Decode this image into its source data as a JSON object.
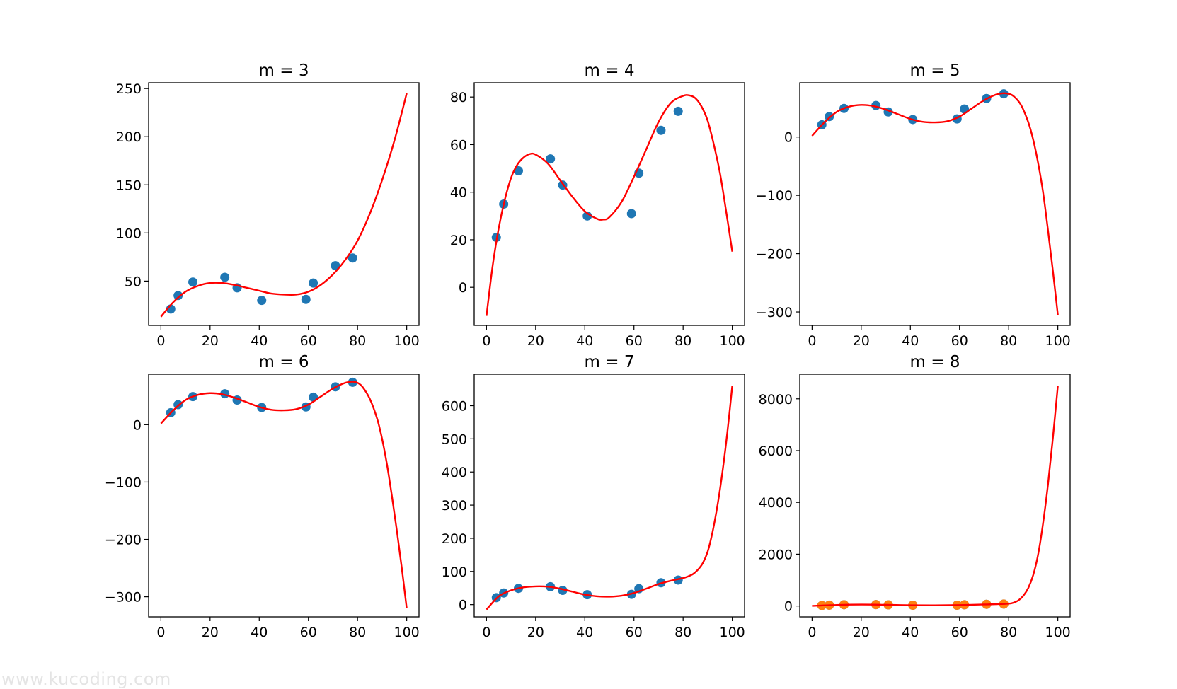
{
  "watermark": "www.kucoding.com",
  "style": {
    "point_color": "#1f77b4",
    "alt_point_color": "#ff7f0e",
    "curve_color": "#ff0000"
  },
  "chart_data": [
    {
      "type": "scatter",
      "title": "m = 3",
      "x": [
        4,
        7,
        13,
        26,
        31,
        41,
        59,
        62,
        71,
        78
      ],
      "y": [
        21,
        35,
        49,
        54,
        43,
        30,
        31,
        48,
        66,
        74
      ],
      "xlim": [
        -5,
        105
      ],
      "ylim": [
        4,
        256
      ],
      "xticks": [
        "0",
        "20",
        "40",
        "60",
        "80",
        "100"
      ],
      "xtick_values": [
        0,
        20,
        40,
        60,
        80,
        100
      ],
      "yticks": [
        "50",
        "100",
        "150",
        "200",
        "250"
      ],
      "ytick_values": [
        50,
        100,
        150,
        200,
        250
      ],
      "point_color": "#1f77b4",
      "fit_curve": {
        "x": [
          0,
          5,
          10,
          15,
          20,
          25,
          30,
          35,
          40,
          45,
          50,
          55,
          60,
          65,
          70,
          75,
          80,
          85,
          90,
          95,
          100
        ],
        "y": [
          13,
          28,
          39,
          45,
          48,
          48,
          46,
          43,
          40,
          37,
          36,
          36,
          39,
          46,
          57,
          72,
          92,
          120,
          155,
          196,
          245
        ]
      }
    },
    {
      "type": "scatter",
      "title": "m = 4",
      "x": [
        4,
        7,
        13,
        26,
        31,
        41,
        59,
        62,
        71,
        78
      ],
      "y": [
        21,
        35,
        49,
        54,
        43,
        30,
        31,
        48,
        66,
        74
      ],
      "xlim": [
        -5,
        105
      ],
      "ylim": [
        -16,
        86
      ],
      "xticks": [
        "0",
        "20",
        "40",
        "60",
        "80",
        "100"
      ],
      "xtick_values": [
        0,
        20,
        40,
        60,
        80,
        100
      ],
      "yticks": [
        "0",
        "20",
        "40",
        "60",
        "80"
      ],
      "ytick_values": [
        0,
        20,
        40,
        60,
        80
      ],
      "point_color": "#1f77b4",
      "fit_curve": {
        "x": [
          0,
          2.5,
          5,
          7.5,
          10,
          12.5,
          15,
          17.5,
          20,
          25,
          30,
          35,
          40,
          45,
          47.5,
          50,
          55,
          60,
          65,
          70,
          75,
          80,
          82.5,
          85,
          87.5,
          90,
          92.5,
          95,
          97.5,
          100
        ],
        "y": [
          -12,
          9,
          25,
          37,
          46,
          51.5,
          54.5,
          56,
          55.8,
          52,
          45,
          38,
          32,
          28.8,
          28.5,
          29.5,
          36,
          46.5,
          58,
          69.5,
          77.5,
          80.5,
          80.7,
          79.5,
          76,
          70,
          60,
          48,
          32,
          15
        ]
      }
    },
    {
      "type": "scatter",
      "title": "m = 5",
      "x": [
        4,
        7,
        13,
        26,
        31,
        41,
        59,
        62,
        71,
        78
      ],
      "y": [
        21,
        35,
        49,
        54,
        43,
        30,
        31,
        48,
        66,
        74
      ],
      "xlim": [
        -5,
        105
      ],
      "ylim": [
        -323,
        93
      ],
      "xticks": [
        "0",
        "20",
        "40",
        "60",
        "80",
        "100"
      ],
      "xtick_values": [
        0,
        20,
        40,
        60,
        80,
        100
      ],
      "yticks": [
        "0",
        "−100",
        "−200",
        "−300"
      ],
      "ytick_values": [
        0,
        -100,
        -200,
        -300
      ],
      "point_color": "#1f77b4",
      "fit_curve": {
        "x": [
          0,
          5,
          10,
          15,
          20,
          25,
          30,
          35,
          40,
          45,
          50,
          55,
          60,
          65,
          70,
          75,
          78,
          80,
          82,
          85,
          88,
          90,
          92,
          94,
          96,
          98,
          100
        ],
        "y": [
          2,
          25,
          43,
          52,
          55,
          53,
          47,
          39,
          31,
          26,
          25,
          27,
          35,
          49,
          63,
          73,
          75,
          74,
          70,
          55,
          25,
          -5,
          -45,
          -95,
          -160,
          -230,
          -305
        ]
      }
    },
    {
      "type": "scatter",
      "title": "m = 6",
      "x": [
        4,
        7,
        13,
        26,
        31,
        41,
        59,
        62,
        71,
        78
      ],
      "y": [
        21,
        35,
        49,
        54,
        43,
        30,
        31,
        48,
        66,
        74
      ],
      "xlim": [
        -5,
        105
      ],
      "ylim": [
        -335,
        88
      ],
      "xticks": [
        "0",
        "20",
        "40",
        "60",
        "80",
        "100"
      ],
      "xtick_values": [
        0,
        20,
        40,
        60,
        80,
        100
      ],
      "yticks": [
        "0",
        "−100",
        "−200",
        "−300"
      ],
      "ytick_values": [
        0,
        -100,
        -200,
        -300
      ],
      "point_color": "#1f77b4",
      "fit_curve": {
        "x": [
          0,
          5,
          10,
          15,
          20,
          25,
          30,
          35,
          40,
          45,
          50,
          55,
          60,
          65,
          70,
          75,
          78,
          80,
          82,
          85,
          88,
          90,
          92,
          94,
          96,
          98,
          100
        ],
        "y": [
          2,
          25,
          43,
          52,
          55,
          53,
          47,
          39,
          31,
          26,
          25,
          27,
          35,
          49,
          63,
          73,
          75,
          73,
          66,
          45,
          10,
          -25,
          -70,
          -125,
          -185,
          -250,
          -320
        ]
      }
    },
    {
      "type": "scatter",
      "title": "m = 7",
      "x": [
        4,
        7,
        13,
        26,
        31,
        41,
        59,
        62,
        71,
        78
      ],
      "y": [
        21,
        35,
        49,
        54,
        43,
        30,
        31,
        48,
        66,
        74
      ],
      "xlim": [
        -5,
        105
      ],
      "ylim": [
        -37,
        695
      ],
      "xticks": [
        "0",
        "20",
        "40",
        "60",
        "80",
        "100"
      ],
      "xtick_values": [
        0,
        20,
        40,
        60,
        80,
        100
      ],
      "yticks": [
        "0",
        "100",
        "200",
        "300",
        "400",
        "500",
        "600"
      ],
      "ytick_values": [
        0,
        100,
        200,
        300,
        400,
        500,
        600
      ],
      "point_color": "#1f77b4",
      "fit_curve": {
        "x": [
          0,
          5,
          10,
          15,
          20,
          25,
          30,
          35,
          40,
          45,
          50,
          55,
          60,
          65,
          70,
          75,
          80,
          82,
          84,
          86,
          88,
          90,
          92,
          94,
          96,
          98,
          100
        ],
        "y": [
          -15,
          25,
          43,
          52,
          55,
          54,
          48,
          39,
          30,
          25,
          24,
          27,
          35,
          48,
          62,
          72,
          80,
          85,
          92,
          105,
          125,
          160,
          220,
          300,
          400,
          520,
          660
        ]
      }
    },
    {
      "type": "scatter",
      "title": "m = 8",
      "x": [
        4,
        7,
        13,
        26,
        31,
        41,
        59,
        62,
        71,
        78
      ],
      "y": [
        21,
        35,
        49,
        54,
        43,
        30,
        31,
        48,
        66,
        74
      ],
      "xlim": [
        -5,
        105
      ],
      "ylim": [
        -420,
        8950
      ],
      "xticks": [
        "0",
        "20",
        "40",
        "60",
        "80",
        "100"
      ],
      "xtick_values": [
        0,
        20,
        40,
        60,
        80,
        100
      ],
      "yticks": [
        "0",
        "2000",
        "4000",
        "6000",
        "8000"
      ],
      "ytick_values": [
        0,
        2000,
        4000,
        6000,
        8000
      ],
      "point_color": "#ff7f0e",
      "point_underlay": "#1f77b4",
      "fit_curve": {
        "x": [
          0,
          10,
          20,
          30,
          40,
          50,
          60,
          70,
          75,
          80,
          82,
          84,
          86,
          88,
          90,
          92,
          94,
          96,
          98,
          100
        ],
        "y": [
          5,
          40,
          55,
          45,
          30,
          25,
          35,
          60,
          70,
          90,
          130,
          220,
          400,
          700,
          1200,
          2000,
          3200,
          4700,
          6500,
          8500
        ]
      }
    }
  ]
}
